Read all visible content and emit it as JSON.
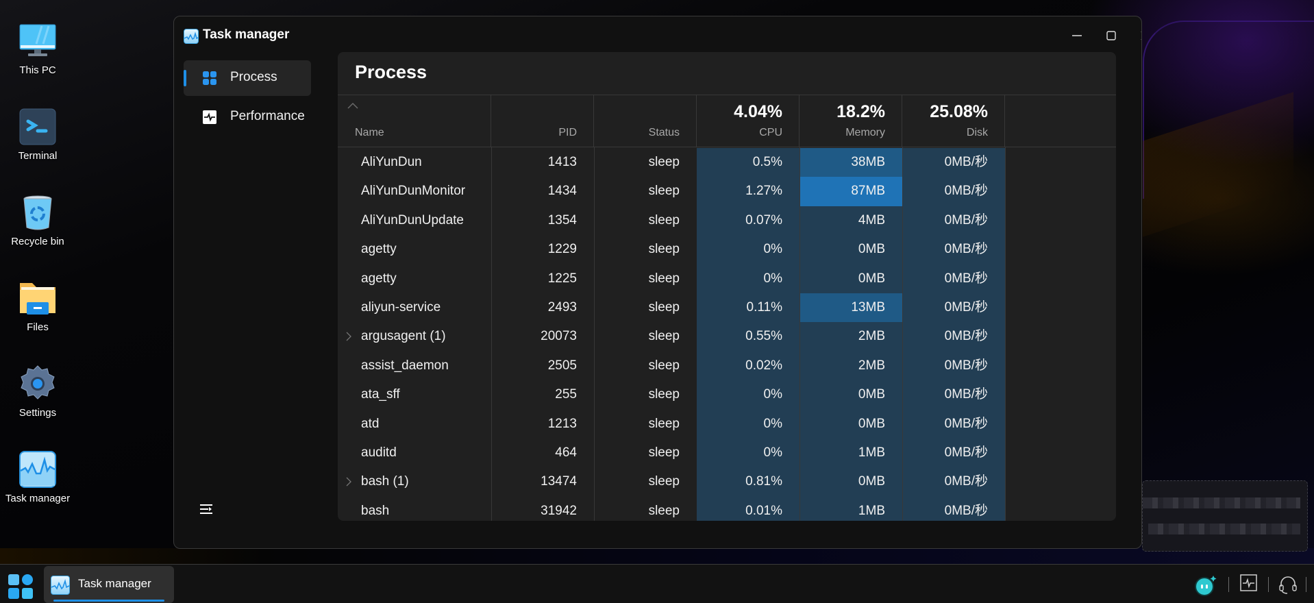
{
  "desktop": {
    "icons": [
      {
        "label": "This PC",
        "icon": "monitor-icon"
      },
      {
        "label": "Terminal",
        "icon": "terminal-icon"
      },
      {
        "label": "Recycle bin",
        "icon": "recycle-bin-icon"
      },
      {
        "label": "Files",
        "icon": "folder-icon"
      },
      {
        "label": "Settings",
        "icon": "gear-icon"
      },
      {
        "label": "Task manager",
        "icon": "task-manager-icon"
      }
    ]
  },
  "window": {
    "title": "Task manager",
    "controls": {
      "minimize": "minimize-icon",
      "maximize": "maximize-icon",
      "close": "close-icon"
    }
  },
  "sidebar": {
    "items": [
      {
        "label": "Process",
        "icon": "grid-icon",
        "active": true
      },
      {
        "label": "Performance",
        "icon": "pulse-icon",
        "active": false
      }
    ],
    "toggle_icon": "menu-collapse-icon"
  },
  "process": {
    "title": "Process",
    "columns": {
      "name": {
        "label": "Name"
      },
      "pid": {
        "label": "PID"
      },
      "status": {
        "label": "Status"
      },
      "cpu": {
        "label": "CPU",
        "total": "4.04%"
      },
      "memory": {
        "label": "Memory",
        "total": "18.2%"
      },
      "disk": {
        "label": "Disk",
        "total": "25.08%"
      }
    },
    "rows": [
      {
        "name": "AliYunDun",
        "pid": "1413",
        "status": "sleep",
        "cpu": "0.5%",
        "memory": "38MB",
        "disk": "0MB/秒",
        "expandable": false,
        "mem_heat": 1
      },
      {
        "name": "AliYunDunMonitor",
        "pid": "1434",
        "status": "sleep",
        "cpu": "1.27%",
        "memory": "87MB",
        "disk": "0MB/秒",
        "expandable": false,
        "mem_heat": 2
      },
      {
        "name": "AliYunDunUpdate",
        "pid": "1354",
        "status": "sleep",
        "cpu": "0.07%",
        "memory": "4MB",
        "disk": "0MB/秒",
        "expandable": false,
        "mem_heat": 0
      },
      {
        "name": "agetty",
        "pid": "1229",
        "status": "sleep",
        "cpu": "0%",
        "memory": "0MB",
        "disk": "0MB/秒",
        "expandable": false,
        "mem_heat": 0
      },
      {
        "name": "agetty",
        "pid": "1225",
        "status": "sleep",
        "cpu": "0%",
        "memory": "0MB",
        "disk": "0MB/秒",
        "expandable": false,
        "mem_heat": 0
      },
      {
        "name": "aliyun-service",
        "pid": "2493",
        "status": "sleep",
        "cpu": "0.11%",
        "memory": "13MB",
        "disk": "0MB/秒",
        "expandable": false,
        "mem_heat": 1
      },
      {
        "name": "argusagent  (1)",
        "pid": "20073",
        "status": "sleep",
        "cpu": "0.55%",
        "memory": "2MB",
        "disk": "0MB/秒",
        "expandable": true,
        "mem_heat": 0
      },
      {
        "name": "assist_daemon",
        "pid": "2505",
        "status": "sleep",
        "cpu": "0.02%",
        "memory": "2MB",
        "disk": "0MB/秒",
        "expandable": false,
        "mem_heat": 0
      },
      {
        "name": "ata_sff",
        "pid": "255",
        "status": "sleep",
        "cpu": "0%",
        "memory": "0MB",
        "disk": "0MB/秒",
        "expandable": false,
        "mem_heat": 0
      },
      {
        "name": "atd",
        "pid": "1213",
        "status": "sleep",
        "cpu": "0%",
        "memory": "0MB",
        "disk": "0MB/秒",
        "expandable": false,
        "mem_heat": 0
      },
      {
        "name": "auditd",
        "pid": "464",
        "status": "sleep",
        "cpu": "0%",
        "memory": "1MB",
        "disk": "0MB/秒",
        "expandable": false,
        "mem_heat": 0
      },
      {
        "name": "bash  (1)",
        "pid": "13474",
        "status": "sleep",
        "cpu": "0.81%",
        "memory": "0MB",
        "disk": "0MB/秒",
        "expandable": true,
        "mem_heat": 0
      },
      {
        "name": "bash",
        "pid": "31942",
        "status": "sleep",
        "cpu": "0.01%",
        "memory": "1MB",
        "disk": "0MB/秒",
        "expandable": false,
        "mem_heat": 0
      }
    ]
  },
  "taskbar": {
    "start_icon": "start-menu-icon",
    "apps": [
      {
        "label": "Task manager",
        "icon": "task-manager-icon",
        "active": true
      }
    ],
    "tray": [
      {
        "icon": "assistant-bot-icon"
      },
      {
        "icon": "activity-monitor-icon"
      },
      {
        "icon": "headset-icon"
      }
    ]
  },
  "colors": {
    "accent": "#1e8fe6",
    "cell_bg": "#223e54",
    "mem_heat_1": "#1f5a86",
    "mem_heat_2": "#1f73b6"
  }
}
